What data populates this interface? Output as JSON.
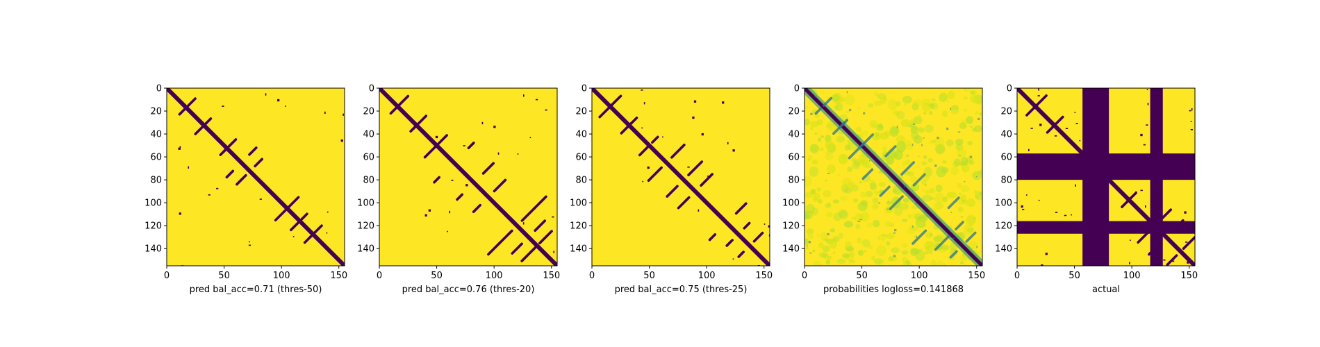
{
  "chart_data": [
    {
      "type": "heatmap",
      "variant": "binary",
      "xlabel": "pred bal_acc=0.71 (thres-50)",
      "xticks": [
        0,
        50,
        100,
        150
      ],
      "yticks": [
        0,
        20,
        40,
        60,
        80,
        100,
        120,
        140
      ],
      "xlim": [
        0,
        155
      ],
      "ylim": [
        155,
        0
      ],
      "grid": false,
      "colors": {
        "low": "#440154",
        "high": "#fde725"
      },
      "contact_blobs": [
        [
          14,
          20
        ],
        [
          35,
          30
        ],
        [
          50,
          55
        ],
        [
          55,
          75
        ],
        [
          65,
          80
        ],
        [
          100,
          110
        ],
        [
          112,
          120
        ],
        [
          125,
          130
        ]
      ]
    },
    {
      "type": "heatmap",
      "variant": "binary",
      "xlabel": "pred bal_acc=0.76 (thres-20)",
      "xticks": [
        0,
        50,
        100,
        150
      ],
      "yticks": [
        0,
        20,
        40,
        60,
        80,
        100,
        120,
        140
      ],
      "xlim": [
        0,
        155
      ],
      "ylim": [
        155,
        0
      ],
      "grid": false,
      "colors": {
        "low": "#440154",
        "high": "#fde725"
      },
      "contact_blobs": [
        [
          12,
          20
        ],
        [
          35,
          30
        ],
        [
          45,
          55
        ],
        [
          50,
          80
        ],
        [
          70,
          95
        ],
        [
          85,
          105
        ],
        [
          100,
          140
        ],
        [
          110,
          130
        ],
        [
          120,
          140
        ],
        [
          130,
          145
        ]
      ]
    },
    {
      "type": "heatmap",
      "variant": "binary",
      "xlabel": "pred bal_acc=0.75 (thres-25)",
      "xticks": [
        0,
        50,
        100,
        150
      ],
      "yticks": [
        0,
        20,
        40,
        60,
        80,
        100,
        120,
        140
      ],
      "xlim": [
        0,
        155
      ],
      "ylim": [
        155,
        0
      ],
      "grid": false,
      "colors": {
        "low": "#440154",
        "high": "#fde725"
      },
      "contact_blobs": [
        [
          12,
          20
        ],
        [
          35,
          30
        ],
        [
          45,
          55
        ],
        [
          55,
          75
        ],
        [
          70,
          90
        ],
        [
          80,
          100
        ],
        [
          105,
          130
        ],
        [
          120,
          135
        ],
        [
          130,
          145
        ]
      ]
    },
    {
      "type": "heatmap",
      "variant": "probabilities",
      "xlabel": "probabilities logloss=0.141868",
      "xticks": [
        0,
        50,
        100,
        150
      ],
      "yticks": [
        0,
        20,
        40,
        60,
        80,
        100,
        120,
        140
      ],
      "xlim": [
        0,
        155
      ],
      "ylim": [
        155,
        0
      ],
      "grid": false,
      "colors": {
        "low": "#440154",
        "mid": "#21918c",
        "high": "#fde725"
      },
      "contact_blobs": [
        [
          12,
          20
        ],
        [
          35,
          30
        ],
        [
          45,
          55
        ],
        [
          55,
          75
        ],
        [
          70,
          90
        ],
        [
          80,
          100
        ],
        [
          100,
          130
        ],
        [
          120,
          135
        ],
        [
          130,
          145
        ]
      ]
    },
    {
      "type": "heatmap",
      "variant": "actual",
      "xlabel": "actual",
      "xticks": [
        0,
        50,
        100,
        150
      ],
      "yticks": [
        0,
        20,
        40,
        60,
        80,
        100,
        120,
        140
      ],
      "xlim": [
        0,
        155
      ],
      "ylim": [
        155,
        0
      ],
      "grid": false,
      "colors": {
        "low": "#440154",
        "high": "#fde725"
      },
      "masked_bands": [
        [
          57,
          80
        ],
        [
          116,
          127
        ]
      ],
      "contact_blobs": [
        [
          12,
          20
        ],
        [
          35,
          30
        ],
        [
          95,
          100
        ],
        [
          110,
          130
        ],
        [
          120,
          140
        ],
        [
          135,
          150
        ]
      ]
    }
  ]
}
